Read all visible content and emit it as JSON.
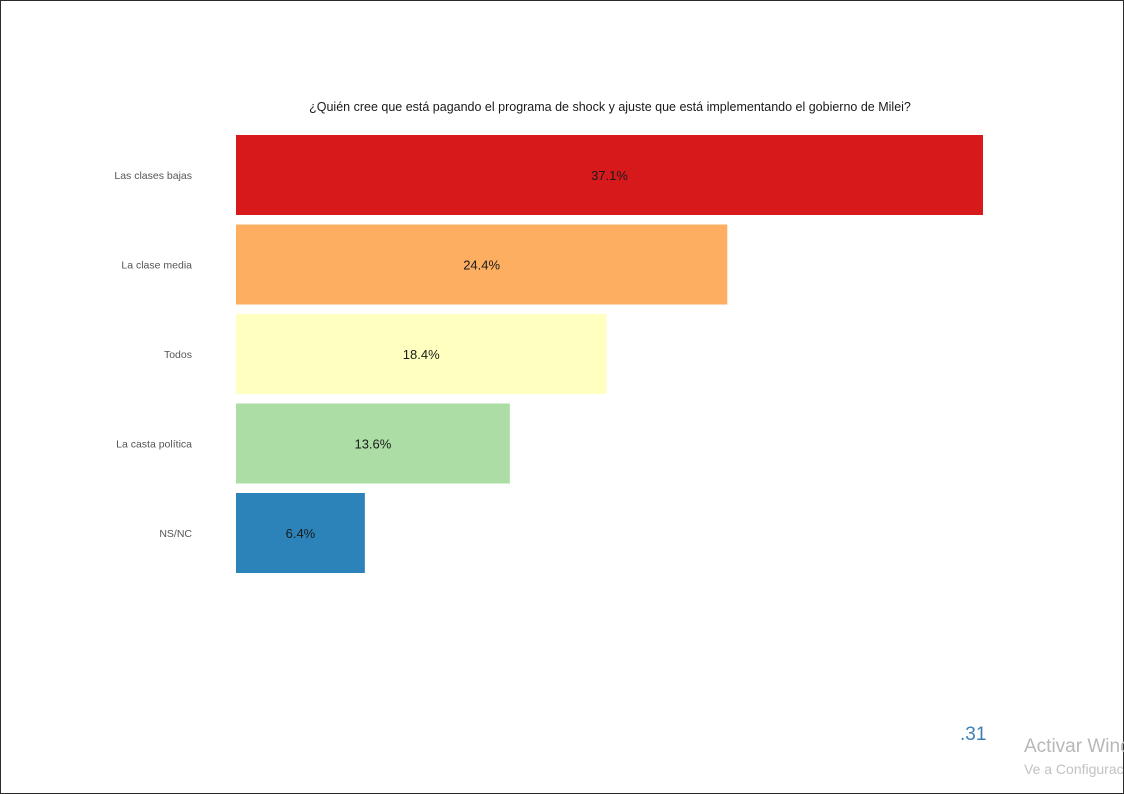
{
  "chart_data": {
    "type": "bar",
    "orientation": "horizontal",
    "title": "¿Quién cree que está pagando el programa de shock y ajuste que está implementando el gobierno de Milei?",
    "xlabel": "",
    "ylabel": "",
    "grid": false,
    "legend": "none",
    "xlim": [
      0,
      37.1
    ],
    "categories": [
      "Las clases bajas",
      "La clase media",
      "Todos",
      "La casta política",
      "NS/NC"
    ],
    "values": [
      37.1,
      24.4,
      18.4,
      13.6,
      6.4
    ],
    "data_labels": [
      "37.1%",
      "24.4%",
      "18.4%",
      "13.6%",
      "6.4%"
    ],
    "colors": [
      "#d7191c",
      "#fdae61",
      "#ffffbf",
      "#abdda4",
      "#2b83ba"
    ]
  },
  "footer": {
    "page_number": ".31"
  },
  "watermark": {
    "title": "Activar Windows",
    "subtitle": "Ve a Configuración"
  }
}
